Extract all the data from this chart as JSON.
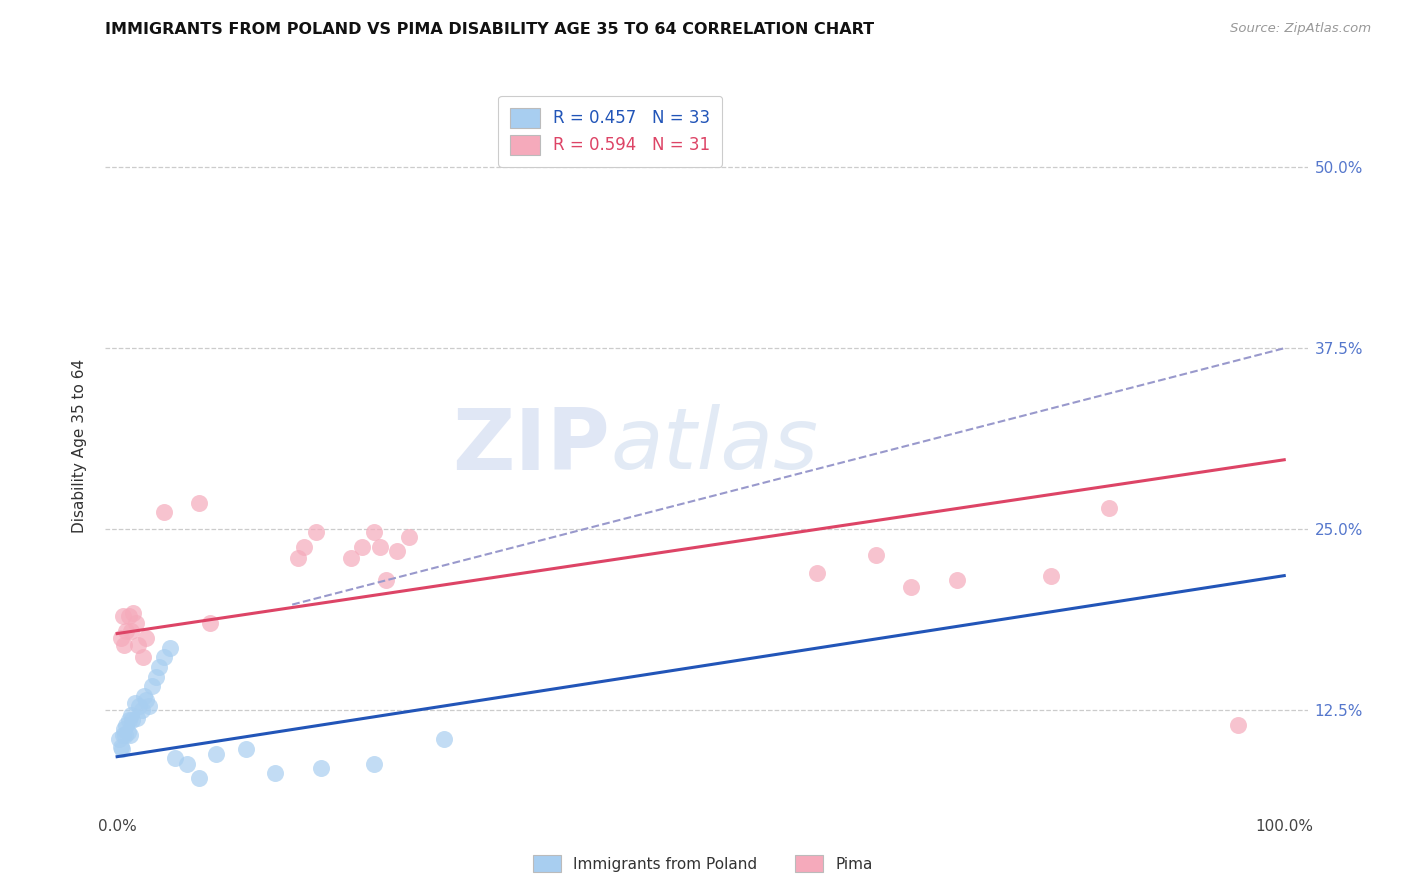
{
  "title": "IMMIGRANTS FROM POLAND VS PIMA DISABILITY AGE 35 TO 64 CORRELATION CHART",
  "source": "Source: ZipAtlas.com",
  "ylabel": "Disability Age 35 to 64",
  "ytick_labels": [
    "12.5%",
    "25.0%",
    "37.5%",
    "50.0%"
  ],
  "ytick_vals": [
    0.125,
    0.25,
    0.375,
    0.5
  ],
  "xtick_labels": [
    "0.0%",
    "100.0%"
  ],
  "xtick_vals": [
    0.0,
    1.0
  ],
  "xlim": [
    -0.01,
    1.02
  ],
  "ylim": [
    0.055,
    0.56
  ],
  "legend_text1": "R = 0.457   N = 33",
  "legend_text2": "R = 0.594   N = 31",
  "legend_label1": "Immigrants from Poland",
  "legend_label2": "Pima",
  "blue_fill": "#a8cef0",
  "pink_fill": "#f5aabb",
  "blue_line": "#2255b8",
  "pink_line": "#dd4466",
  "dash_line": "#9999cc",
  "blue_r_color": "#2255b8",
  "pink_r_color": "#dd4466",
  "ytick_color": "#5577cc",
  "watermark_text": "ZIPatlas",
  "grid_color": "#cccccc",
  "blue_x": [
    0.002,
    0.003,
    0.004,
    0.005,
    0.006,
    0.007,
    0.008,
    0.009,
    0.01,
    0.011,
    0.012,
    0.013,
    0.015,
    0.017,
    0.019,
    0.021,
    0.023,
    0.025,
    0.027,
    0.03,
    0.033,
    0.036,
    0.04,
    0.045,
    0.05,
    0.06,
    0.07,
    0.085,
    0.11,
    0.135,
    0.175,
    0.22,
    0.28
  ],
  "blue_y": [
    0.105,
    0.1,
    0.098,
    0.108,
    0.112,
    0.108,
    0.115,
    0.11,
    0.118,
    0.108,
    0.122,
    0.118,
    0.13,
    0.12,
    0.128,
    0.125,
    0.135,
    0.132,
    0.128,
    0.142,
    0.148,
    0.155,
    0.162,
    0.168,
    0.092,
    0.088,
    0.078,
    0.095,
    0.098,
    0.082,
    0.085,
    0.088,
    0.105
  ],
  "pink_x": [
    0.003,
    0.005,
    0.006,
    0.008,
    0.01,
    0.012,
    0.014,
    0.016,
    0.018,
    0.022,
    0.025,
    0.04,
    0.07,
    0.08,
    0.155,
    0.16,
    0.17,
    0.2,
    0.21,
    0.22,
    0.225,
    0.23,
    0.24,
    0.25,
    0.6,
    0.65,
    0.68,
    0.72,
    0.8,
    0.85,
    0.96
  ],
  "pink_y": [
    0.175,
    0.19,
    0.17,
    0.18,
    0.19,
    0.18,
    0.192,
    0.185,
    0.17,
    0.162,
    0.175,
    0.262,
    0.268,
    0.185,
    0.23,
    0.238,
    0.248,
    0.23,
    0.238,
    0.248,
    0.238,
    0.215,
    0.235,
    0.245,
    0.22,
    0.232,
    0.21,
    0.215,
    0.218,
    0.265,
    0.115
  ],
  "blue_trend_x": [
    0.0,
    1.0
  ],
  "blue_trend_y": [
    0.093,
    0.218
  ],
  "pink_trend_x": [
    0.0,
    1.0
  ],
  "pink_trend_y": [
    0.178,
    0.298
  ],
  "dash_trend_x": [
    0.15,
    1.0
  ],
  "dash_trend_y": [
    0.198,
    0.375
  ]
}
